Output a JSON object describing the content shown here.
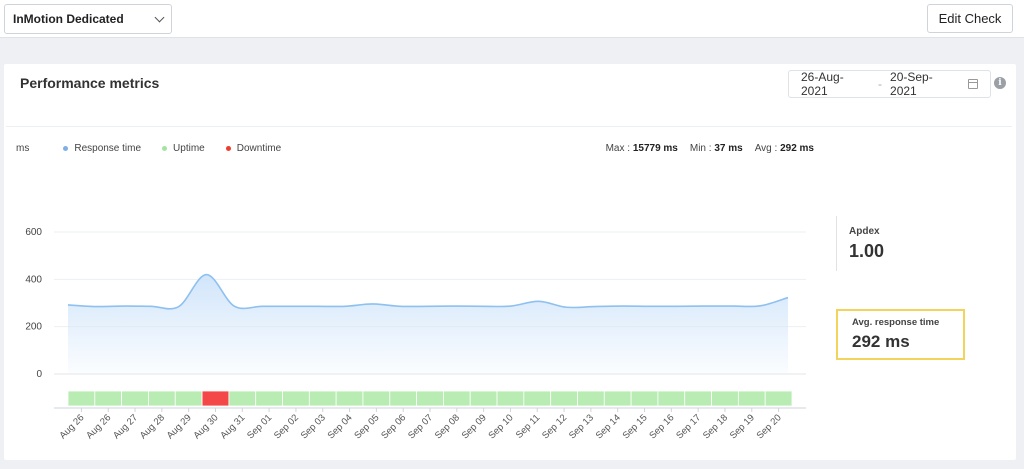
{
  "monitor_select": {
    "value": "InMotion Dedicated"
  },
  "toolbar": {
    "edit_label": "Edit Check"
  },
  "card": {
    "title": "Performance metrics",
    "date_from": "26-Aug-2021",
    "date_sep": "-",
    "date_to": "20-Sep-2021",
    "info_glyph": "i"
  },
  "legend": {
    "unit": "ms",
    "response": "Response time",
    "uptime": "Uptime",
    "downtime": "Downtime"
  },
  "stats": {
    "max_label": "Max :",
    "max_value": "15779 ms",
    "min_label": "Min :",
    "min_value": "37 ms",
    "avg_label": "Avg :",
    "avg_value": "292 ms"
  },
  "apdex": {
    "label": "Apdex",
    "value": "1.00"
  },
  "avg_response": {
    "label": "Avg. response time",
    "value": "292 ms"
  },
  "colors": {
    "line": "#8ec0f0",
    "area_top": "#cfe4fa",
    "uptime": "#b9ecb3",
    "downtime": "#f44848",
    "legend_response": "#7eb0e6",
    "legend_uptime": "#a6e3a1",
    "legend_downtime": "#ef3c2c"
  },
  "icons": [
    "chevron-down-icon",
    "calendar-icon",
    "info-icon"
  ],
  "chart_data": {
    "type": "area",
    "ylabel": "ms",
    "ylim": [
      0,
      600
    ],
    "yticks": [
      0,
      200,
      400,
      600
    ],
    "grid": true,
    "legend_placement": "top-left",
    "categories": [
      "Aug 26",
      "Aug 26",
      "Aug 27",
      "Aug 28",
      "Aug 29",
      "Aug 30",
      "Aug 31",
      "Sep 01",
      "Sep 02",
      "Sep 03",
      "Sep 04",
      "Sep 05",
      "Sep 06",
      "Sep 07",
      "Sep 08",
      "Sep 09",
      "Sep 10",
      "Sep 11",
      "Sep 12",
      "Sep 13",
      "Sep 14",
      "Sep 15",
      "Sep 16",
      "Sep 17",
      "Sep 18",
      "Sep 19",
      "Sep 20"
    ],
    "series": [
      {
        "name": "Response time",
        "values": [
          292,
          285,
          287,
          286,
          285,
          420,
          287,
          286,
          286,
          286,
          286,
          296,
          286,
          286,
          287,
          286,
          287,
          307,
          282,
          285,
          287,
          286,
          286,
          287,
          287,
          288,
          323
        ]
      }
    ],
    "status_strip": [
      "up",
      "up",
      "up",
      "up",
      "up",
      "down",
      "up",
      "up",
      "up",
      "up",
      "up",
      "up",
      "up",
      "up",
      "up",
      "up",
      "up",
      "up",
      "up",
      "up",
      "up",
      "up",
      "up",
      "up",
      "up",
      "up",
      "up"
    ]
  }
}
